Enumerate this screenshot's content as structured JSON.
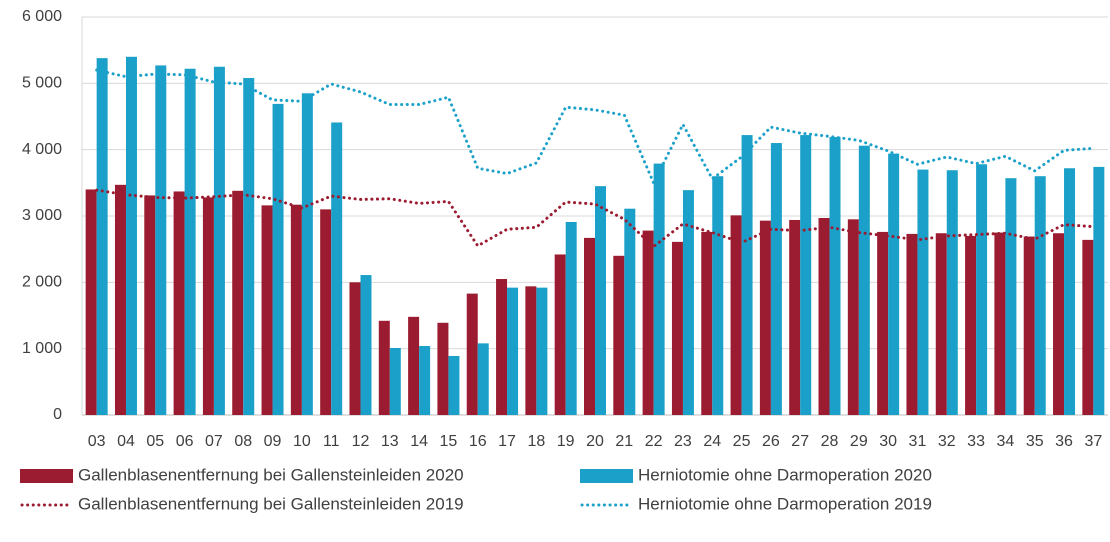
{
  "chart_data": {
    "type": "bar",
    "categories": [
      "03",
      "04",
      "05",
      "06",
      "07",
      "08",
      "09",
      "10",
      "11",
      "12",
      "13",
      "14",
      "15",
      "16",
      "17",
      "18",
      "19",
      "20",
      "21",
      "22",
      "23",
      "24",
      "25",
      "26",
      "27",
      "28",
      "29",
      "30",
      "31",
      "32",
      "33",
      "34",
      "35",
      "36",
      "37"
    ],
    "ylim": [
      0,
      6000
    ],
    "yticks": [
      0,
      {
        "value": 1000,
        "label": "1 000"
      },
      {
        "value": 2000,
        "label": "2 000"
      },
      {
        "value": 3000,
        "label": "3 000"
      },
      {
        "value": 4000,
        "label": "4 000"
      },
      {
        "value": 5000,
        "label": "5 000"
      },
      {
        "value": 6000,
        "label": "6 000"
      }
    ],
    "grid": true,
    "series": [
      {
        "name": "Gallenblasenentfernung bei Gallensteinleiden 2020",
        "type": "bar",
        "color": "#9b1b30",
        "values": [
          3400,
          3470,
          3310,
          3370,
          3280,
          3380,
          3160,
          3170,
          3100,
          2000,
          1420,
          1480,
          1390,
          1830,
          2050,
          1940,
          2420,
          2670,
          2400,
          2780,
          2610,
          2760,
          3010,
          2930,
          2940,
          2970,
          2950,
          2760,
          2730,
          2740,
          2700,
          2750,
          2690,
          2740,
          2640
        ]
      },
      {
        "name": "Herniotomie ohne Darmoperation 2020",
        "type": "bar",
        "color": "#1ba1c9",
        "values": [
          5380,
          5400,
          5270,
          5220,
          5250,
          5080,
          4690,
          4850,
          4410,
          2110,
          1010,
          1040,
          890,
          1080,
          1920,
          1920,
          2910,
          3450,
          3110,
          3790,
          3390,
          3600,
          4220,
          4100,
          4220,
          4190,
          4060,
          3940,
          3700,
          3690,
          3780,
          3570,
          3600,
          3720,
          3740
        ]
      },
      {
        "name": "Gallenblasenentfernung bei Gallensteinleiden 2019",
        "type": "line",
        "color": "#9b1b30",
        "values": [
          3390,
          3320,
          3280,
          3270,
          3290,
          3320,
          3260,
          3120,
          3300,
          3250,
          3260,
          3190,
          3220,
          2550,
          2800,
          2830,
          3210,
          3180,
          2950,
          2540,
          2880,
          2750,
          2600,
          2800,
          2780,
          2830,
          2750,
          2700,
          2640,
          2700,
          2720,
          2740,
          2650,
          2870,
          2840
        ]
      },
      {
        "name": "Herniotomie ohne Darmoperation 2019",
        "type": "line",
        "color": "#1ba1c9",
        "values": [
          5200,
          5100,
          5140,
          5130,
          5020,
          4990,
          4750,
          4730,
          4990,
          4870,
          4680,
          4680,
          4790,
          3720,
          3640,
          3800,
          4640,
          4600,
          4520,
          3500,
          4380,
          3560,
          3890,
          4340,
          4250,
          4200,
          4140,
          3980,
          3780,
          3890,
          3790,
          3900,
          3680,
          3990,
          4020
        ]
      }
    ]
  }
}
